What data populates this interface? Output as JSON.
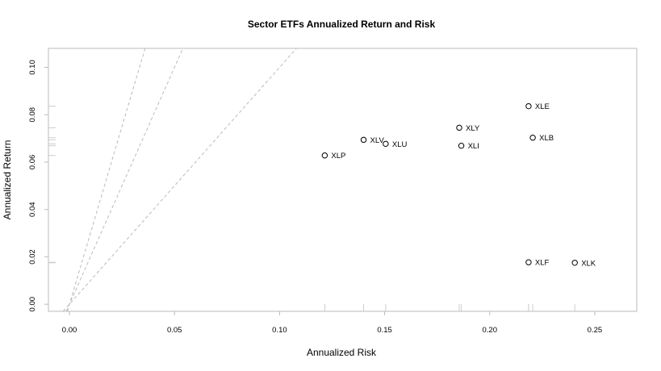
{
  "chart_data": {
    "type": "scatter",
    "title": "Sector ETFs Annualized Return and Risk",
    "xlabel": "Annualized Risk",
    "ylabel": "Annualized Return",
    "xlim": [
      -0.01,
      0.27
    ],
    "ylim": [
      -0.003,
      0.108
    ],
    "xticks": [
      "0.00",
      "0.05",
      "0.10",
      "0.15",
      "0.20",
      "0.25"
    ],
    "yticks": [
      "0.00",
      "0.02",
      "0.04",
      "0.06",
      "0.08",
      "0.10"
    ],
    "grid": false,
    "points": [
      {
        "label": "XLE",
        "x": 0.2185,
        "y": 0.0836
      },
      {
        "label": "XLY",
        "x": 0.1855,
        "y": 0.0745
      },
      {
        "label": "XLB",
        "x": 0.2205,
        "y": 0.0703
      },
      {
        "label": "XLV",
        "x": 0.14,
        "y": 0.0694
      },
      {
        "label": "XLU",
        "x": 0.1505,
        "y": 0.0677
      },
      {
        "label": "XLI",
        "x": 0.1865,
        "y": 0.0669
      },
      {
        "label": "XLP",
        "x": 0.1215,
        "y": 0.0628
      },
      {
        "label": "XLF",
        "x": 0.2185,
        "y": 0.0177
      },
      {
        "label": "XLK",
        "x": 0.2405,
        "y": 0.0175
      }
    ],
    "reference_lines": [
      {
        "intercept": 0,
        "slope": 3.0
      },
      {
        "intercept": 0,
        "slope": 2.0
      },
      {
        "intercept": 0,
        "slope": 1.0
      }
    ]
  }
}
